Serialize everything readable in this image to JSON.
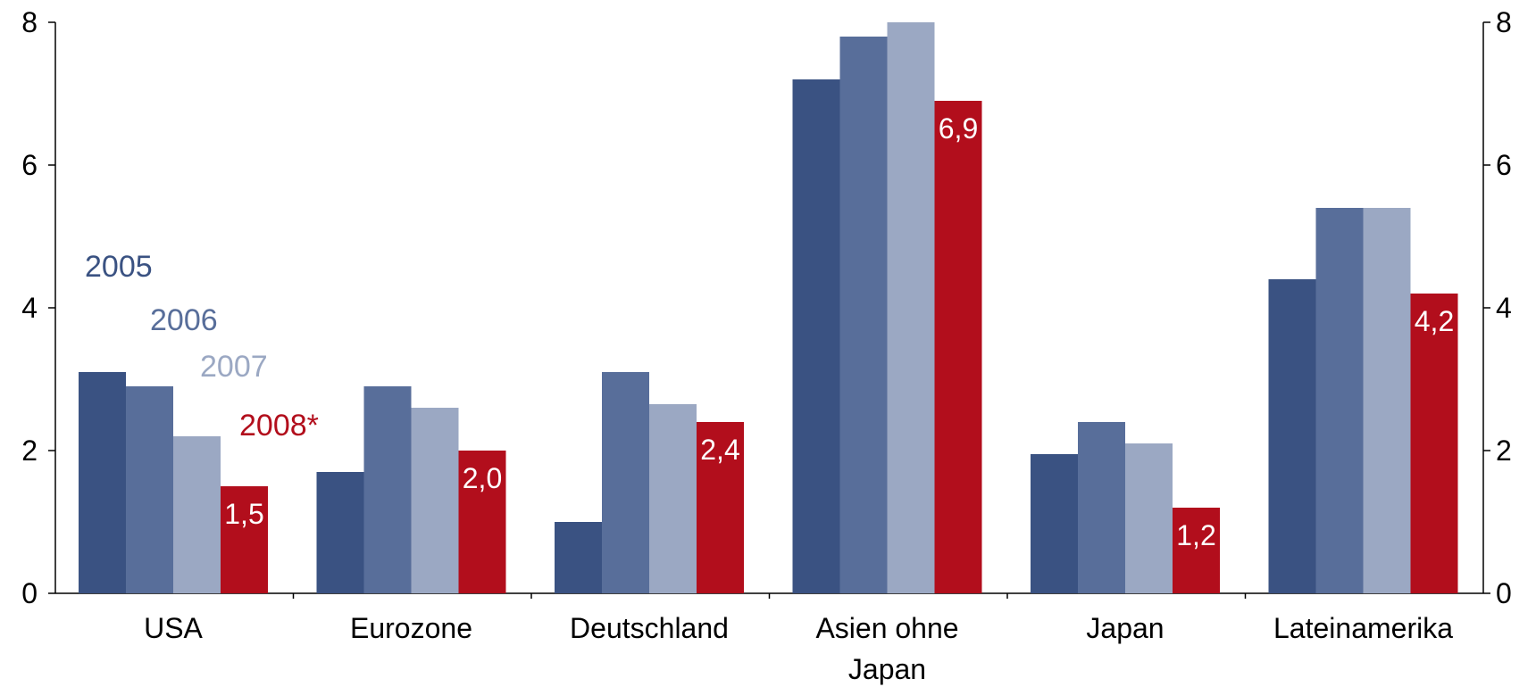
{
  "chart_data": {
    "type": "bar",
    "categories": [
      [
        "USA"
      ],
      [
        "Eurozone"
      ],
      [
        "Deutschland"
      ],
      [
        "Asien ohne",
        "Japan"
      ],
      [
        "Japan"
      ],
      [
        "Lateinamerika"
      ]
    ],
    "series": [
      {
        "name": "2005",
        "color": "#3a5282",
        "values": [
          3.1,
          1.7,
          1.0,
          7.2,
          1.95,
          4.4
        ]
      },
      {
        "name": "2006",
        "color": "#586e9a",
        "values": [
          2.9,
          2.9,
          3.1,
          7.8,
          2.4,
          5.4
        ]
      },
      {
        "name": "2007",
        "color": "#9ba8c3",
        "values": [
          2.2,
          2.6,
          2.65,
          8.0,
          2.1,
          5.4
        ]
      },
      {
        "name": "2008*",
        "color": "#b20e1c",
        "values": [
          1.5,
          2.0,
          2.4,
          6.9,
          1.2,
          4.2
        ]
      }
    ],
    "data_labels": {
      "series_index": 3,
      "texts": [
        "1,5",
        "2,0",
        "2,4",
        "6,9",
        "1,2",
        "4,2"
      ]
    },
    "ylim": [
      0,
      8
    ],
    "yticks": [
      0,
      2,
      4,
      6,
      8
    ],
    "secondary_axis": true,
    "grid": false,
    "legend_placement": "inside-left, staggered next to USA bars"
  }
}
